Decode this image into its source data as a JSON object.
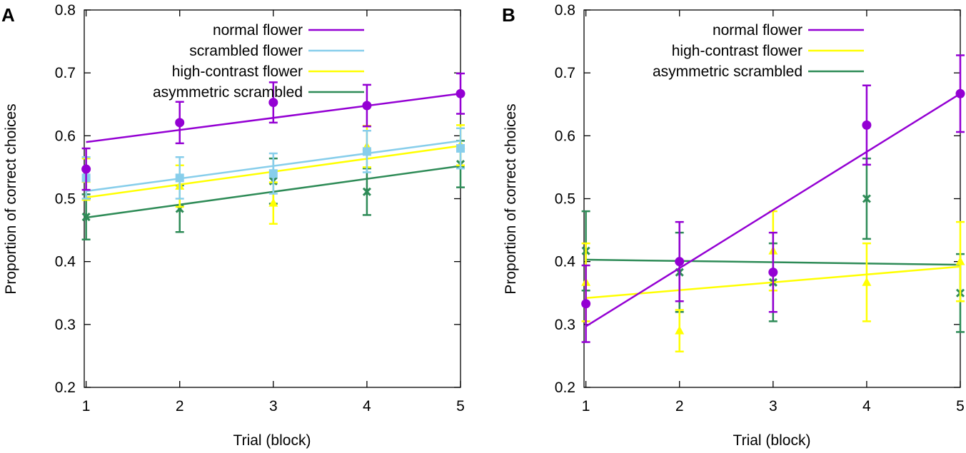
{
  "chart_data": [
    {
      "panel": "A",
      "type": "line",
      "title": "",
      "xlabel": "Trial (block)",
      "ylabel": "Proportion of correct choices",
      "xlim": [
        0.98,
        5.0
      ],
      "ylim": [
        0.2,
        0.8
      ],
      "xticks": [
        "1",
        "2",
        "3",
        "4",
        "5"
      ],
      "yticks": [
        "0.2",
        "0.3",
        "0.4",
        "0.5",
        "0.6",
        "0.7",
        "0.8"
      ],
      "grid": false,
      "legend_position": "top-right",
      "series": [
        {
          "name": "normal flower",
          "color": "#9400d3",
          "marker": "circle",
          "x": [
            1,
            2,
            3,
            4,
            5
          ],
          "y": [
            0.547,
            0.621,
            0.653,
            0.648,
            0.667
          ],
          "err": [
            0.033,
            0.033,
            0.032,
            0.033,
            0.032
          ],
          "fit": [
            0.59,
            0.667
          ]
        },
        {
          "name": "scrambled flower",
          "color": "#87ceeb",
          "marker": "square",
          "x": [
            1,
            2,
            3,
            4,
            5
          ],
          "y": [
            0.533,
            0.533,
            0.54,
            0.575,
            0.58
          ],
          "err": [
            0.033,
            0.033,
            0.032,
            0.033,
            0.032
          ],
          "fit": [
            0.512,
            0.592
          ]
        },
        {
          "name": "high-contrast flower",
          "color": "#ffff00",
          "marker": "triangle",
          "x": [
            1,
            2,
            3,
            4,
            5
          ],
          "y": [
            0.531,
            0.52,
            0.493,
            0.583,
            0.585
          ],
          "err": [
            0.033,
            0.033,
            0.033,
            0.033,
            0.032
          ],
          "fit": [
            0.502,
            0.584
          ]
        },
        {
          "name": "asymmetric scrambled",
          "color": "#2e8b57",
          "marker": "star",
          "x": [
            1,
            2,
            3,
            4,
            5
          ],
          "y": [
            0.471,
            0.484,
            0.528,
            0.511,
            0.555
          ],
          "err": [
            0.036,
            0.037,
            0.036,
            0.037,
            0.037
          ],
          "fit": [
            0.47,
            0.552
          ]
        }
      ]
    },
    {
      "panel": "B",
      "type": "line",
      "title": "",
      "xlabel": "Trial (block)",
      "ylabel": "Proportion of correct choices",
      "xlim": [
        0.98,
        5.0
      ],
      "ylim": [
        0.2,
        0.8
      ],
      "xticks": [
        "1",
        "2",
        "3",
        "4",
        "5"
      ],
      "yticks": [
        "0.2",
        "0.3",
        "0.4",
        "0.5",
        "0.6",
        "0.7",
        "0.8"
      ],
      "grid": false,
      "legend_position": "top-right",
      "series": [
        {
          "name": "normal flower",
          "color": "#9400d3",
          "marker": "circle",
          "x": [
            1,
            2,
            3,
            4,
            5
          ],
          "y": [
            0.333,
            0.4,
            0.383,
            0.617,
            0.667
          ],
          "err": [
            0.061,
            0.063,
            0.063,
            0.063,
            0.061
          ],
          "fit": [
            0.297,
            0.667
          ]
        },
        {
          "name": "high-contrast flower",
          "color": "#ffff00",
          "marker": "triangle",
          "x": [
            1,
            2,
            3,
            4,
            5
          ],
          "y": [
            0.367,
            0.29,
            0.417,
            0.367,
            0.4
          ],
          "err": [
            0.062,
            0.033,
            0.063,
            0.062,
            0.063
          ],
          "fit": [
            0.342,
            0.392
          ]
        },
        {
          "name": "asymmetric scrambled",
          "color": "#2e8b57",
          "marker": "star",
          "x": [
            1,
            2,
            3,
            4,
            5
          ],
          "y": [
            0.417,
            0.383,
            0.367,
            0.5,
            0.35
          ],
          "err": [
            0.063,
            0.063,
            0.062,
            0.064,
            0.062
          ],
          "fit": [
            0.403,
            0.395
          ]
        }
      ]
    }
  ]
}
